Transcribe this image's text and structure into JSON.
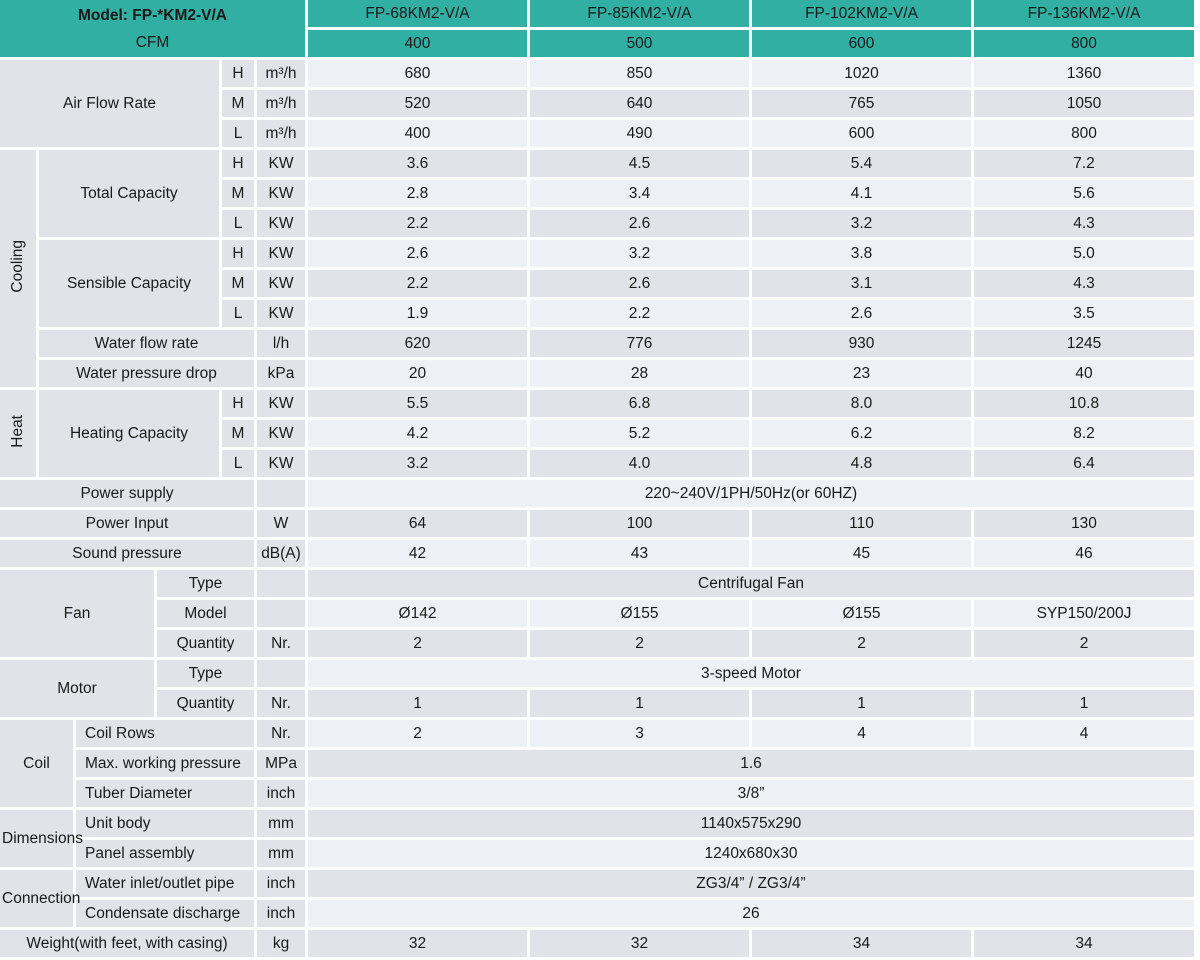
{
  "colors": {
    "teal": "#31afa2",
    "label_bg": "#e2e3e8",
    "row_light": "#edf1f5",
    "row_dark": "#e2e3e8",
    "text": "#1a1a1a",
    "grid": "#ffffff"
  },
  "table": {
    "title": "Model: FP-*KM2-V/A",
    "models": [
      "FP-68KM2-V/A",
      "FP-85KM2-V/A",
      "FP-102KM2-V/A",
      "FP-136KM2-V/A"
    ],
    "rows": [
      {
        "s": "h",
        "cells": [
          {
            "line1": "Model: FP-*KM2-V/A",
            "line2": "CFM",
            "k": "tealstack",
            "c": 6,
            "r": 2
          },
          {
            "t": "FP-68KM2-V/A",
            "k": "tealh"
          },
          {
            "t": "FP-85KM2-V/A",
            "k": "tealh"
          },
          {
            "t": "FP-102KM2-V/A",
            "k": "tealh"
          },
          {
            "t": "FP-136KM2-V/A",
            "k": "tealh"
          }
        ]
      },
      {
        "s": "h",
        "cells": [
          {
            "t": "400",
            "k": "tealv"
          },
          {
            "t": "500",
            "k": "tealv"
          },
          {
            "t": "600",
            "k": "tealv"
          },
          {
            "t": "800",
            "k": "tealv"
          }
        ]
      },
      {
        "s": "l",
        "cells": [
          {
            "t": "Air Flow Rate",
            "k": "lab",
            "c": 4,
            "r": 3
          },
          {
            "t": "H",
            "k": "hml"
          },
          {
            "t": "m³/h",
            "k": "unit"
          },
          {
            "t": "680"
          },
          {
            "t": "850"
          },
          {
            "t": "1020"
          },
          {
            "t": "1360"
          }
        ]
      },
      {
        "s": "d",
        "cells": [
          {
            "t": "M",
            "k": "hml"
          },
          {
            "t": "m³/h",
            "k": "unit"
          },
          {
            "t": "520"
          },
          {
            "t": "640"
          },
          {
            "t": "765"
          },
          {
            "t": "1050"
          }
        ]
      },
      {
        "s": "l",
        "cells": [
          {
            "t": "L",
            "k": "hml"
          },
          {
            "t": "m³/h",
            "k": "unit"
          },
          {
            "t": "400"
          },
          {
            "t": "490"
          },
          {
            "t": "600"
          },
          {
            "t": "800"
          }
        ]
      },
      {
        "s": "d",
        "cells": [
          {
            "t": "Cooling",
            "k": "vert",
            "r": 8
          },
          {
            "t": "Total Capacity",
            "k": "lab",
            "c": 3,
            "r": 3
          },
          {
            "t": "H",
            "k": "hml"
          },
          {
            "t": "KW",
            "k": "unit"
          },
          {
            "t": "3.6"
          },
          {
            "t": "4.5"
          },
          {
            "t": "5.4"
          },
          {
            "t": "7.2"
          }
        ]
      },
      {
        "s": "l",
        "cells": [
          {
            "t": "M",
            "k": "hml"
          },
          {
            "t": "KW",
            "k": "unit"
          },
          {
            "t": "2.8"
          },
          {
            "t": "3.4"
          },
          {
            "t": "4.1"
          },
          {
            "t": "5.6"
          }
        ]
      },
      {
        "s": "d",
        "cells": [
          {
            "t": "L",
            "k": "hml"
          },
          {
            "t": "KW",
            "k": "unit"
          },
          {
            "t": "2.2"
          },
          {
            "t": "2.6"
          },
          {
            "t": "3.2"
          },
          {
            "t": "4.3"
          }
        ]
      },
      {
        "s": "l",
        "cells": [
          {
            "t": "Sensible Capacity",
            "k": "lab",
            "c": 3,
            "r": 3
          },
          {
            "t": "H",
            "k": "hml"
          },
          {
            "t": "KW",
            "k": "unit"
          },
          {
            "t": "2.6"
          },
          {
            "t": "3.2"
          },
          {
            "t": "3.8"
          },
          {
            "t": "5.0"
          }
        ]
      },
      {
        "s": "d",
        "cells": [
          {
            "t": "M",
            "k": "hml"
          },
          {
            "t": "KW",
            "k": "unit"
          },
          {
            "t": "2.2"
          },
          {
            "t": "2.6"
          },
          {
            "t": "3.1"
          },
          {
            "t": "4.3"
          }
        ]
      },
      {
        "s": "l",
        "cells": [
          {
            "t": "L",
            "k": "hml"
          },
          {
            "t": "KW",
            "k": "unit"
          },
          {
            "t": "1.9"
          },
          {
            "t": "2.2"
          },
          {
            "t": "2.6"
          },
          {
            "t": "3.5"
          }
        ]
      },
      {
        "s": "d",
        "cells": [
          {
            "t": "Water flow rate",
            "k": "lab",
            "c": 4
          },
          {
            "t": "l/h",
            "k": "unit"
          },
          {
            "t": "620"
          },
          {
            "t": "776"
          },
          {
            "t": "930"
          },
          {
            "t": "1245"
          }
        ]
      },
      {
        "s": "l",
        "cells": [
          {
            "t": "Water pressure drop",
            "k": "lab",
            "c": 4
          },
          {
            "t": "kPa",
            "k": "unit"
          },
          {
            "t": "20"
          },
          {
            "t": "28"
          },
          {
            "t": "23"
          },
          {
            "t": "40"
          }
        ]
      },
      {
        "s": "d",
        "cells": [
          {
            "t": "Heat",
            "k": "vert",
            "r": 3
          },
          {
            "t": "Heating Capacity",
            "k": "lab",
            "c": 3,
            "r": 3
          },
          {
            "t": "H",
            "k": "hml"
          },
          {
            "t": "KW",
            "k": "unit"
          },
          {
            "t": "5.5"
          },
          {
            "t": "6.8"
          },
          {
            "t": "8.0"
          },
          {
            "t": "10.8"
          }
        ]
      },
      {
        "s": "l",
        "cells": [
          {
            "t": "M",
            "k": "hml"
          },
          {
            "t": "KW",
            "k": "unit"
          },
          {
            "t": "4.2"
          },
          {
            "t": "5.2"
          },
          {
            "t": "6.2"
          },
          {
            "t": "8.2"
          }
        ]
      },
      {
        "s": "d",
        "cells": [
          {
            "t": "L",
            "k": "hml"
          },
          {
            "t": "KW",
            "k": "unit"
          },
          {
            "t": "3.2"
          },
          {
            "t": "4.0"
          },
          {
            "t": "4.8"
          },
          {
            "t": "6.4"
          }
        ]
      },
      {
        "s": "l",
        "cells": [
          {
            "t": "Power supply",
            "k": "lab",
            "c": 5
          },
          {
            "t": "",
            "k": "unit"
          },
          {
            "t": "220~240V/1PH/50Hz(or 60HZ)",
            "k": "vs",
            "c": 4
          }
        ]
      },
      {
        "s": "d",
        "cells": [
          {
            "t": "Power Input",
            "k": "lab",
            "c": 5
          },
          {
            "t": "W",
            "k": "unit"
          },
          {
            "t": "64"
          },
          {
            "t": "100"
          },
          {
            "t": "110"
          },
          {
            "t": "130"
          }
        ]
      },
      {
        "s": "l",
        "cells": [
          {
            "t": "Sound pressure",
            "k": "lab",
            "c": 5
          },
          {
            "t": "dB(A)",
            "k": "unit"
          },
          {
            "t": "42"
          },
          {
            "t": "43"
          },
          {
            "t": "45"
          },
          {
            "t": "46"
          }
        ]
      },
      {
        "s": "d",
        "cells": [
          {
            "t": "Fan",
            "k": "lab",
            "c": 3,
            "r": 3
          },
          {
            "t": "Type",
            "k": "sub",
            "c": 2
          },
          {
            "t": "",
            "k": "unit"
          },
          {
            "t": "Centrifugal Fan",
            "k": "vs",
            "c": 4
          }
        ]
      },
      {
        "s": "l",
        "cells": [
          {
            "t": "Model",
            "k": "sub",
            "c": 2
          },
          {
            "t": "",
            "k": "unit"
          },
          {
            "t": "Ø142"
          },
          {
            "t": "Ø155"
          },
          {
            "t": "Ø155"
          },
          {
            "t": "SYP150/200J"
          }
        ]
      },
      {
        "s": "d",
        "cells": [
          {
            "t": "Quantity",
            "k": "sub",
            "c": 2
          },
          {
            "t": "Nr.",
            "k": "unit"
          },
          {
            "t": "2"
          },
          {
            "t": "2"
          },
          {
            "t": "2"
          },
          {
            "t": "2"
          }
        ]
      },
      {
        "s": "l",
        "cells": [
          {
            "t": "Motor",
            "k": "lab",
            "c": 3,
            "r": 2
          },
          {
            "t": "Type",
            "k": "sub",
            "c": 2
          },
          {
            "t": "",
            "k": "unit"
          },
          {
            "t": "3-speed Motor",
            "k": "vs",
            "c": 4
          }
        ]
      },
      {
        "s": "d",
        "cells": [
          {
            "t": "Quantity",
            "k": "sub",
            "c": 2
          },
          {
            "t": "Nr.",
            "k": "unit"
          },
          {
            "t": "1"
          },
          {
            "t": "1"
          },
          {
            "t": "1"
          },
          {
            "t": "1"
          }
        ]
      },
      {
        "s": "l",
        "cells": [
          {
            "t": "Coil",
            "k": "lab",
            "c": 2,
            "r": 3
          },
          {
            "t": "Coil Rows",
            "k": "subl",
            "c": 3
          },
          {
            "t": "Nr.",
            "k": "unit"
          },
          {
            "t": "2"
          },
          {
            "t": "3"
          },
          {
            "t": "4"
          },
          {
            "t": "4"
          }
        ]
      },
      {
        "s": "d",
        "cells": [
          {
            "t": "Max. working pressure",
            "k": "subl",
            "c": 3
          },
          {
            "t": "MPa",
            "k": "unit"
          },
          {
            "t": "1.6",
            "k": "vs",
            "c": 4
          }
        ]
      },
      {
        "s": "l",
        "cells": [
          {
            "t": "Tuber Diameter",
            "k": "subl",
            "c": 3
          },
          {
            "t": "inch",
            "k": "unit"
          },
          {
            "t": "3/8”",
            "k": "vs",
            "c": 4
          }
        ]
      },
      {
        "s": "d",
        "cells": [
          {
            "t": "Dimensions",
            "k": "ovf",
            "c": 2,
            "r": 2
          },
          {
            "t": "Unit body",
            "k": "subl",
            "c": 3
          },
          {
            "t": "mm",
            "k": "unit"
          },
          {
            "t": "1140x575x290",
            "k": "vs",
            "c": 4
          }
        ]
      },
      {
        "s": "l",
        "cells": [
          {
            "t": "Panel assembly",
            "k": "subl",
            "c": 3
          },
          {
            "t": "mm",
            "k": "unit"
          },
          {
            "t": "1240x680x30",
            "k": "vs",
            "c": 4
          }
        ]
      },
      {
        "s": "d",
        "cells": [
          {
            "t": "Connection",
            "k": "ovf",
            "c": 2,
            "r": 2
          },
          {
            "t": "Water inlet/outlet pipe",
            "k": "subl",
            "c": 3
          },
          {
            "t": "inch",
            "k": "unit"
          },
          {
            "t": "ZG3/4” / ZG3/4”",
            "k": "vs",
            "c": 4
          }
        ]
      },
      {
        "s": "l",
        "cells": [
          {
            "t": "Condensate discharge",
            "k": "subl",
            "c": 3
          },
          {
            "t": "inch",
            "k": "unit"
          },
          {
            "t": "26",
            "k": "vs",
            "c": 4
          }
        ]
      },
      {
        "s": "d",
        "cells": [
          {
            "t": "Weight(with feet, with casing)",
            "k": "lab",
            "c": 5
          },
          {
            "t": "kg",
            "k": "unit"
          },
          {
            "t": "32"
          },
          {
            "t": "32"
          },
          {
            "t": "34"
          },
          {
            "t": "34"
          }
        ]
      }
    ]
  }
}
